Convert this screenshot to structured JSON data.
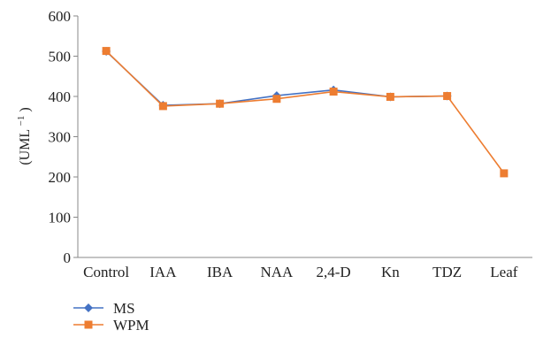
{
  "chart_data": {
    "type": "line",
    "ylabel_main": "(UML",
    "ylabel_sup": "−1",
    "ylabel_close": ")",
    "ylim": [
      0,
      600
    ],
    "yticks": [
      "0",
      "100",
      "200",
      "300",
      "400",
      "500",
      "600"
    ],
    "categories": [
      "Control",
      "IAA",
      "IBA",
      "NAA",
      "2,4-D",
      "Kn",
      "TDZ",
      "Leaf"
    ],
    "grid": false,
    "legend_position": "bottom-left",
    "series": [
      {
        "name": "MS",
        "color": "#4472c4",
        "marker": "diamond",
        "values": [
          512,
          378,
          382,
          402,
          416,
          399,
          401,
          null
        ]
      },
      {
        "name": "WPM",
        "color": "#ed7d31",
        "marker": "square",
        "values": [
          513,
          376,
          382,
          394,
          412,
          399,
          401,
          209
        ]
      }
    ]
  }
}
